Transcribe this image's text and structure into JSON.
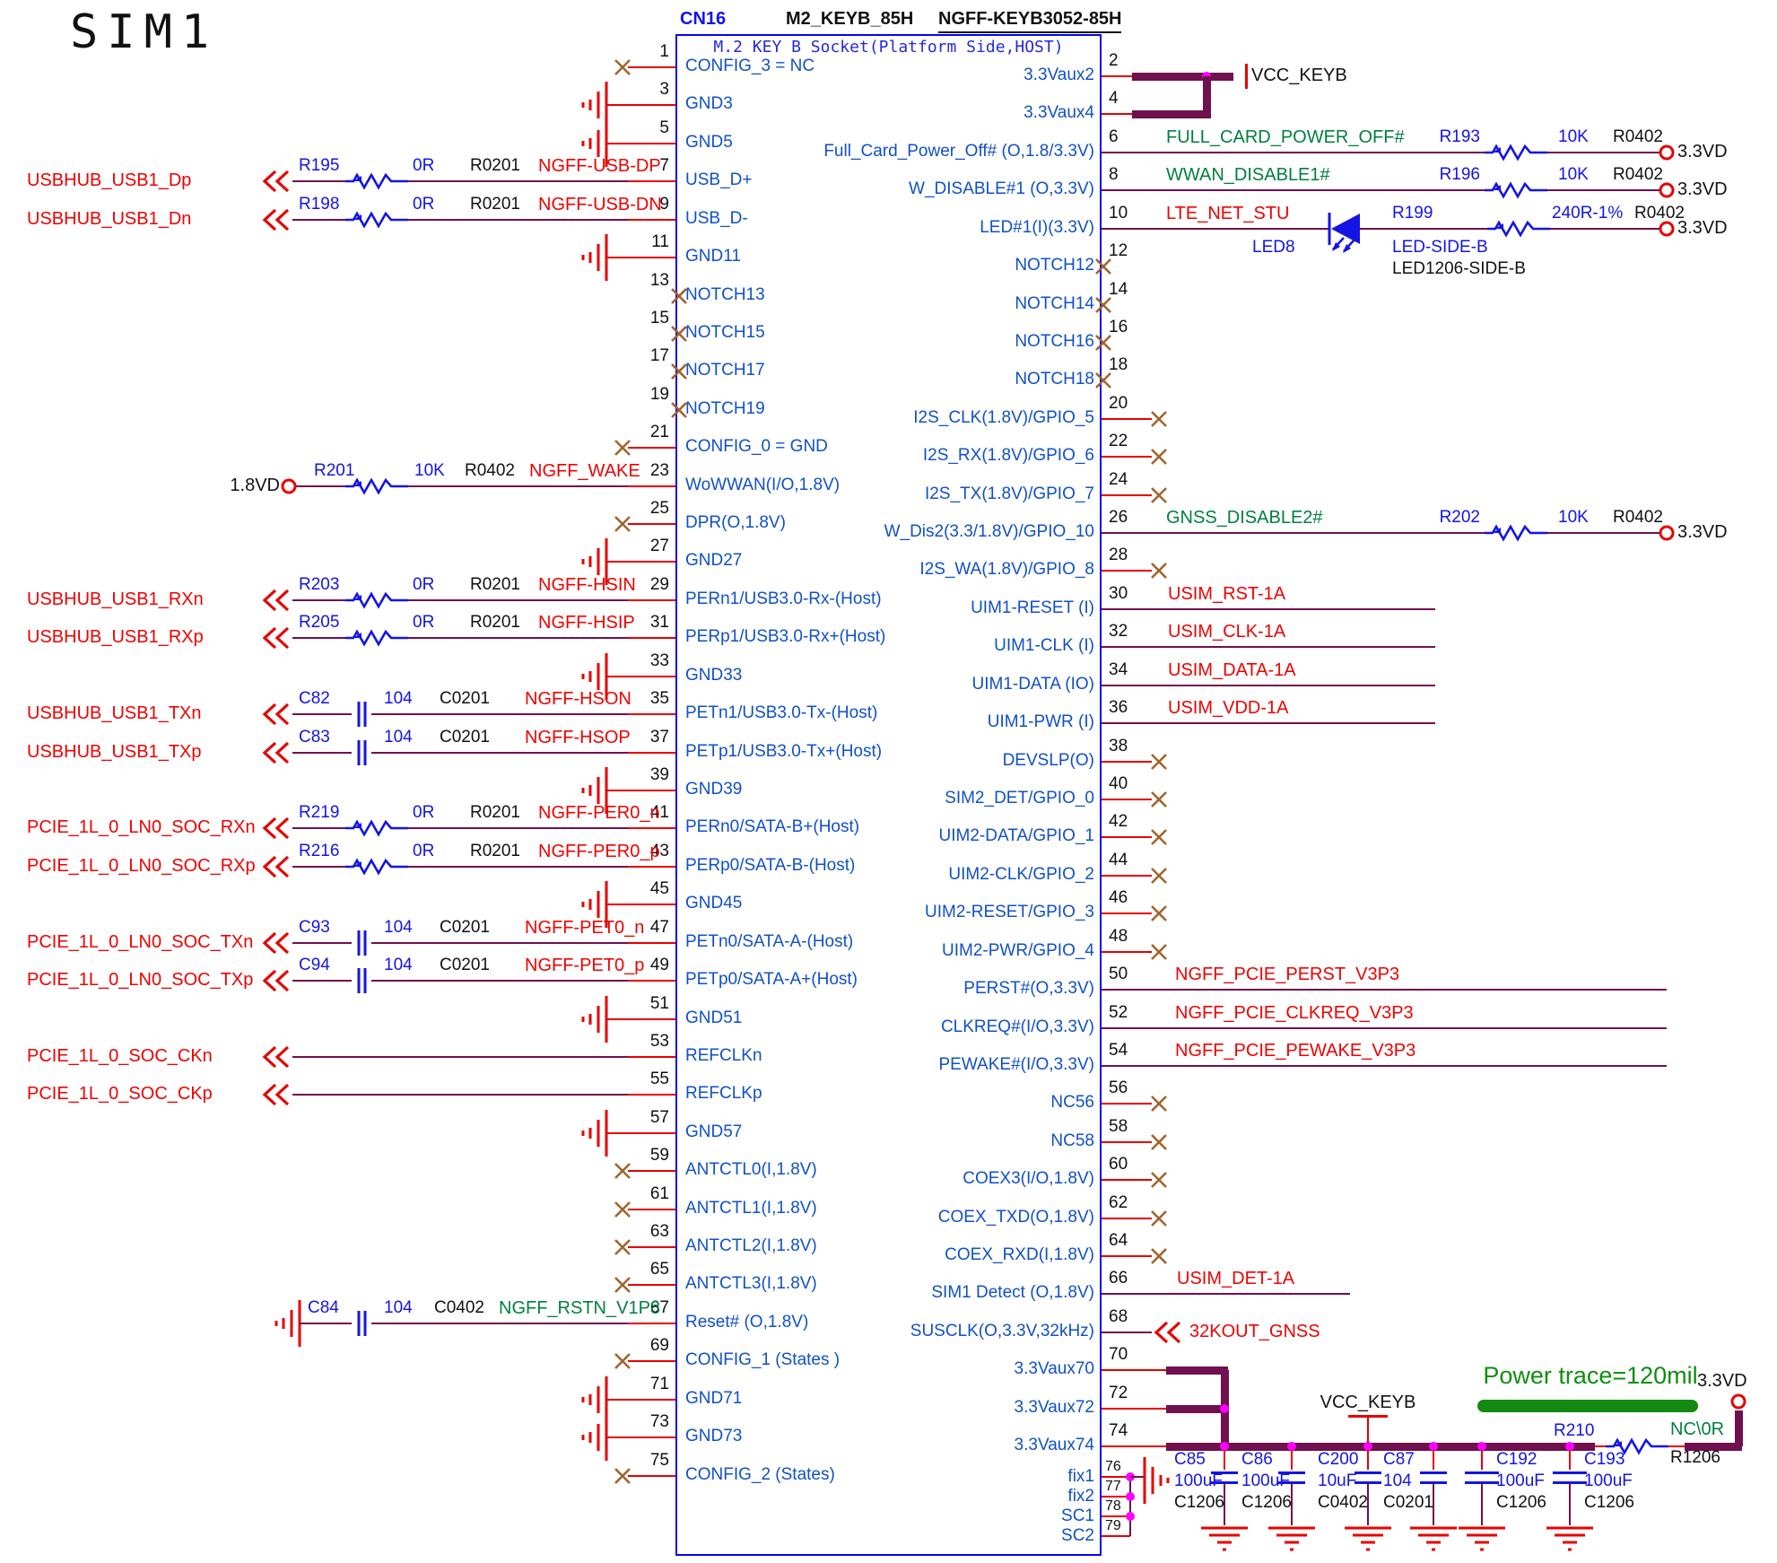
{
  "title": "SIM1",
  "connector": {
    "refdes": "CN16",
    "part_name": "M2_KEYB_85H",
    "part_number": "NGFF-KEYB3052-85H",
    "subtitle": "M.2 KEY B Socket(Platform Side,HOST)"
  },
  "colors": {
    "wire_red": "#e80000",
    "net_maroon": "#70104e",
    "symbol_blue": "#1414e6",
    "label_blue": "#1050c8",
    "net_red": "#f00000",
    "net_green": "#007f40",
    "junction_magenta": "#ff00ff",
    "no_connect_brown": "#a2642c",
    "power_note_green": "#0f8f0f"
  },
  "rows": [
    {
      "l": {
        "pin": "1",
        "label": "CONFIG_3 = NC",
        "ext": {
          "t": "nc"
        }
      },
      "r": {
        "pin": "2",
        "label": "3.3Vaux2",
        "ext": {
          "t": "busvcc",
          "vcc": "VCC_KEYB"
        }
      }
    },
    {
      "l": {
        "pin": "3",
        "label": "GND3",
        "ext": {
          "t": "gnd"
        }
      },
      "r": {
        "pin": "4",
        "label": "3.3Vaux4",
        "ext": {
          "t": "busjoin"
        }
      }
    },
    {
      "l": {
        "pin": "5",
        "label": "GND5",
        "ext": {
          "t": "gnd"
        }
      },
      "r": {
        "pin": "6",
        "label": "Full_Card_Power_Off# (O,1.8/3.3V)",
        "ext": {
          "t": "resterm",
          "net": "FULL_CARD_POWER_OFF#",
          "nc": "g",
          "ref": "R193",
          "val": "10K",
          "pkg": "R0402",
          "term": "3.3VD"
        }
      }
    },
    {
      "l": {
        "pin": "7",
        "label": "USB_D+",
        "ext": {
          "t": "res",
          "src": "USBHUB_USB1_Dp",
          "ref": "R195",
          "val": "0R",
          "pkg": "R0201",
          "net": "NGFF-USB-DP"
        }
      },
      "r": {
        "pin": "8",
        "label": "W_DISABLE#1 (O,3.3V)",
        "ext": {
          "t": "resterm",
          "net": "WWAN_DISABLE1#",
          "nc": "g",
          "ref": "R196",
          "val": "10K",
          "pkg": "R0402",
          "term": "3.3VD"
        }
      }
    },
    {
      "l": {
        "pin": "9",
        "label": "USB_D-",
        "ext": {
          "t": "res",
          "src": "USBHUB_USB1_Dn",
          "ref": "R198",
          "val": "0R",
          "pkg": "R0201",
          "net": "NGFF-USB-DN"
        }
      },
      "r": {
        "pin": "10",
        "label": "LED#1(I)(3.3V)",
        "ext": {
          "t": "led",
          "net": "LTE_NET_STU",
          "led_ref": "LED8",
          "led_name": "LED-SIDE-B",
          "led_pkg": "LED1206-SIDE-B",
          "ref": "R199",
          "val": "240R-1%",
          "pkg": "R0402",
          "term": "3.3VD"
        }
      }
    },
    {
      "l": {
        "pin": "11",
        "label": "GND11",
        "ext": {
          "t": "gnd"
        }
      },
      "r": {
        "pin": "12",
        "label": "NOTCH12",
        "ext": {
          "t": "notch"
        }
      }
    },
    {
      "l": {
        "pin": "13",
        "label": "NOTCH13",
        "ext": {
          "t": "notch"
        }
      },
      "r": {
        "pin": "14",
        "label": "NOTCH14",
        "ext": {
          "t": "notch"
        }
      }
    },
    {
      "l": {
        "pin": "15",
        "label": "NOTCH15",
        "ext": {
          "t": "notch"
        }
      },
      "r": {
        "pin": "16",
        "label": "NOTCH16",
        "ext": {
          "t": "notch"
        }
      }
    },
    {
      "l": {
        "pin": "17",
        "label": "NOTCH17",
        "ext": {
          "t": "notch"
        }
      },
      "r": {
        "pin": "18",
        "label": "NOTCH18",
        "ext": {
          "t": "notch"
        }
      }
    },
    {
      "l": {
        "pin": "19",
        "label": "NOTCH19",
        "ext": {
          "t": "notch"
        }
      },
      "r": {
        "pin": "20",
        "label": "I2S_CLK(1.8V)/GPIO_5",
        "ext": {
          "t": "x"
        }
      }
    },
    {
      "l": {
        "pin": "21",
        "label": "CONFIG_0 = GND",
        "ext": {
          "t": "nc"
        }
      },
      "r": {
        "pin": "22",
        "label": "I2S_RX(1.8V)/GPIO_6",
        "ext": {
          "t": "x"
        }
      }
    },
    {
      "l": {
        "pin": "23",
        "label": "WoWWAN(I/O,1.8V)",
        "ext": {
          "t": "pwr",
          "term": "1.8VD",
          "ref": "R201",
          "val": "10K",
          "pkg": "R0402",
          "net": "NGFF_WAKE"
        }
      },
      "r": {
        "pin": "24",
        "label": "I2S_TX(1.8V)/GPIO_7",
        "ext": {
          "t": "x"
        }
      }
    },
    {
      "l": {
        "pin": "25",
        "label": "DPR(O,1.8V)",
        "ext": {
          "t": "nc"
        }
      },
      "r": {
        "pin": "26",
        "label": "W_Dis2(3.3/1.8V)/GPIO_10",
        "ext": {
          "t": "resterm",
          "net": "GNSS_DISABLE2#",
          "nc": "g",
          "ref": "R202",
          "val": "10K",
          "pkg": "R0402",
          "term": "3.3VD"
        }
      }
    },
    {
      "l": {
        "pin": "27",
        "label": "GND27",
        "ext": {
          "t": "gnd"
        }
      },
      "r": {
        "pin": "28",
        "label": "I2S_WA(1.8V)/GPIO_8",
        "ext": {
          "t": "x"
        }
      }
    },
    {
      "l": {
        "pin": "29",
        "label": "PERn1/USB3.0-Rx-(Host)",
        "ext": {
          "t": "res",
          "src": "USBHUB_USB1_RXn",
          "ref": "R203",
          "val": "0R",
          "pkg": "R0201",
          "net": "NGFF-HSIN"
        }
      },
      "r": {
        "pin": "30",
        "label": "UIM1-RESET (I)",
        "ext": {
          "t": "net",
          "net": "USIM_RST-1A"
        }
      }
    },
    {
      "l": {
        "pin": "31",
        "label": "PERp1/USB3.0-Rx+(Host)",
        "ext": {
          "t": "res",
          "src": "USBHUB_USB1_RXp",
          "ref": "R205",
          "val": "0R",
          "pkg": "R0201",
          "net": "NGFF-HSIP"
        }
      },
      "r": {
        "pin": "32",
        "label": "UIM1-CLK (I)",
        "ext": {
          "t": "net",
          "net": "USIM_CLK-1A"
        }
      }
    },
    {
      "l": {
        "pin": "33",
        "label": "GND33",
        "ext": {
          "t": "gnd"
        }
      },
      "r": {
        "pin": "34",
        "label": "UIM1-DATA (IO)",
        "ext": {
          "t": "net",
          "net": "USIM_DATA-1A"
        }
      }
    },
    {
      "l": {
        "pin": "35",
        "label": "PETn1/USB3.0-Tx-(Host)",
        "ext": {
          "t": "cap",
          "src": "USBHUB_USB1_TXn",
          "ref": "C82",
          "val": "104",
          "pkg": "C0201",
          "net": "NGFF-HSON"
        }
      },
      "r": {
        "pin": "36",
        "label": "UIM1-PWR (I)",
        "ext": {
          "t": "net",
          "net": "USIM_VDD-1A"
        }
      }
    },
    {
      "l": {
        "pin": "37",
        "label": "PETp1/USB3.0-Tx+(Host)",
        "ext": {
          "t": "cap",
          "src": "USBHUB_USB1_TXp",
          "ref": "C83",
          "val": "104",
          "pkg": "C0201",
          "net": "NGFF-HSOP"
        }
      },
      "r": {
        "pin": "38",
        "label": "DEVSLP(O)",
        "ext": {
          "t": "x"
        }
      }
    },
    {
      "l": {
        "pin": "39",
        "label": "GND39",
        "ext": {
          "t": "gnd"
        }
      },
      "r": {
        "pin": "40",
        "label": "SIM2_DET/GPIO_0",
        "ext": {
          "t": "x"
        }
      }
    },
    {
      "l": {
        "pin": "41",
        "label": "PERn0/SATA-B+(Host)",
        "ext": {
          "t": "res",
          "src": "PCIE_1L_0_LN0_SOC_RXn",
          "ref": "R219",
          "val": "0R",
          "pkg": "R0201",
          "net": "NGFF-PER0_n"
        }
      },
      "r": {
        "pin": "42",
        "label": "UIM2-DATA/GPIO_1",
        "ext": {
          "t": "x"
        }
      }
    },
    {
      "l": {
        "pin": "43",
        "label": "PERp0/SATA-B-(Host)",
        "ext": {
          "t": "res",
          "src": "PCIE_1L_0_LN0_SOC_RXp",
          "ref": "R216",
          "val": "0R",
          "pkg": "R0201",
          "net": "NGFF-PER0_p"
        }
      },
      "r": {
        "pin": "44",
        "label": "UIM2-CLK/GPIO_2",
        "ext": {
          "t": "x"
        }
      }
    },
    {
      "l": {
        "pin": "45",
        "label": "GND45",
        "ext": {
          "t": "gnd"
        }
      },
      "r": {
        "pin": "46",
        "label": "UIM2-RESET/GPIO_3",
        "ext": {
          "t": "x"
        }
      }
    },
    {
      "l": {
        "pin": "47",
        "label": "PETn0/SATA-A-(Host)",
        "ext": {
          "t": "cap",
          "src": "PCIE_1L_0_LN0_SOC_TXn",
          "ref": "C93",
          "val": "104",
          "pkg": "C0201",
          "net": "NGFF-PET0_n"
        }
      },
      "r": {
        "pin": "48",
        "label": "UIM2-PWR/GPIO_4",
        "ext": {
          "t": "x"
        }
      }
    },
    {
      "l": {
        "pin": "49",
        "label": "PETp0/SATA-A+(Host)",
        "ext": {
          "t": "cap",
          "src": "PCIE_1L_0_LN0_SOC_TXp",
          "ref": "C94",
          "val": "104",
          "pkg": "C0201",
          "net": "NGFF-PET0_p"
        }
      },
      "r": {
        "pin": "50",
        "label": "PERST#(O,3.3V)",
        "ext": {
          "t": "netlong",
          "net": "NGFF_PCIE_PERST_V3P3"
        }
      }
    },
    {
      "l": {
        "pin": "51",
        "label": "GND51",
        "ext": {
          "t": "gnd"
        }
      },
      "r": {
        "pin": "52",
        "label": "CLKREQ#(I/O,3.3V)",
        "ext": {
          "t": "netlong",
          "net": "NGFF_PCIE_CLKREQ_V3P3"
        }
      }
    },
    {
      "l": {
        "pin": "53",
        "label": "REFCLKn",
        "ext": {
          "t": "wire",
          "src": "PCIE_1L_0_SOC_CKn"
        }
      },
      "r": {
        "pin": "54",
        "label": "PEWAKE#(I/O,3.3V)",
        "ext": {
          "t": "netlong",
          "net": "NGFF_PCIE_PEWAKE_V3P3"
        }
      }
    },
    {
      "l": {
        "pin": "55",
        "label": "REFCLKp",
        "ext": {
          "t": "wire",
          "src": "PCIE_1L_0_SOC_CKp"
        }
      },
      "r": {
        "pin": "56",
        "label": "NC56",
        "ext": {
          "t": "x"
        }
      }
    },
    {
      "l": {
        "pin": "57",
        "label": "GND57",
        "ext": {
          "t": "gnd"
        }
      },
      "r": {
        "pin": "58",
        "label": "NC58",
        "ext": {
          "t": "x"
        }
      }
    },
    {
      "l": {
        "pin": "59",
        "label": "ANTCTL0(I,1.8V)",
        "ext": {
          "t": "nc"
        }
      },
      "r": {
        "pin": "60",
        "label": "COEX3(I/O,1.8V)",
        "ext": {
          "t": "x"
        }
      }
    },
    {
      "l": {
        "pin": "61",
        "label": "ANTCTL1(I,1.8V)",
        "ext": {
          "t": "nc"
        }
      },
      "r": {
        "pin": "62",
        "label": "COEX_TXD(O,1.8V)",
        "ext": {
          "t": "x"
        }
      }
    },
    {
      "l": {
        "pin": "63",
        "label": "ANTCTL2(I,1.8V)",
        "ext": {
          "t": "nc"
        }
      },
      "r": {
        "pin": "64",
        "label": "COEX_RXD(I,1.8V)",
        "ext": {
          "t": "x"
        }
      }
    },
    {
      "l": {
        "pin": "65",
        "label": "ANTCTL3(I,1.8V)",
        "ext": {
          "t": "nc"
        }
      },
      "r": {
        "pin": "66",
        "label": "SIM1 Detect (O,1.8V)",
        "ext": {
          "t": "net66",
          "net": "USIM_DET-1A"
        }
      }
    },
    {
      "l": {
        "pin": "67",
        "label": "Reset# (O,1.8V)",
        "ext": {
          "t": "gndcap",
          "ref": "C84",
          "val": "104",
          "pkg": "C0402",
          "net": "NGFF_RSTN_V1P8"
        }
      },
      "r": {
        "pin": "68",
        "label": "SUSCLK(O,3.3V,32kHz)",
        "ext": {
          "t": "arrow",
          "net": "32KOUT_GNSS"
        }
      }
    },
    {
      "l": {
        "pin": "69",
        "label": "CONFIG_1 (States )",
        "ext": {
          "t": "nc"
        }
      },
      "r": {
        "pin": "70",
        "label": "3.3Vaux70",
        "ext": {
          "t": "bus70"
        }
      }
    },
    {
      "l": {
        "pin": "71",
        "label": "GND71",
        "ext": {
          "t": "gnd"
        }
      },
      "r": {
        "pin": "72",
        "label": "3.3Vaux72",
        "ext": {
          "t": "bus72"
        }
      }
    },
    {
      "l": {
        "pin": "73",
        "label": "GND73",
        "ext": {
          "t": "gnd"
        }
      },
      "r": {
        "pin": "74",
        "label": "3.3Vaux74",
        "ext": {
          "t": "bus74"
        }
      }
    },
    {
      "l": {
        "pin": "75",
        "label": "CONFIG_2 (States)",
        "ext": {
          "t": "nc"
        }
      },
      "r": null
    }
  ],
  "bottom_pins": [
    {
      "pin": "76",
      "label": "fix1"
    },
    {
      "pin": "77",
      "label": "fix2"
    },
    {
      "pin": "78",
      "label": "SC1"
    },
    {
      "pin": "79",
      "label": "SC2"
    }
  ],
  "power_rail": {
    "vcc_label": "VCC_KEYB",
    "trace_note": "Power trace=120mil",
    "term": "3.3VD",
    "resistor": {
      "ref": "R210",
      "val": "NC\\0R",
      "pkg": "R1206"
    },
    "caps": [
      {
        "ref": "C85",
        "val": "100uF",
        "pkg": "C1206"
      },
      {
        "ref": "C86",
        "val": "100uF",
        "pkg": "C1206"
      },
      {
        "ref": "C200",
        "val": "10uF",
        "pkg": "C0402"
      },
      {
        "ref": "C87",
        "val": "104",
        "pkg": "C0201"
      },
      {
        "ref": "C192",
        "val": "100uF",
        "pkg": "C1206"
      },
      {
        "ref": "C193",
        "val": "100uF",
        "pkg": "C1206"
      }
    ]
  }
}
